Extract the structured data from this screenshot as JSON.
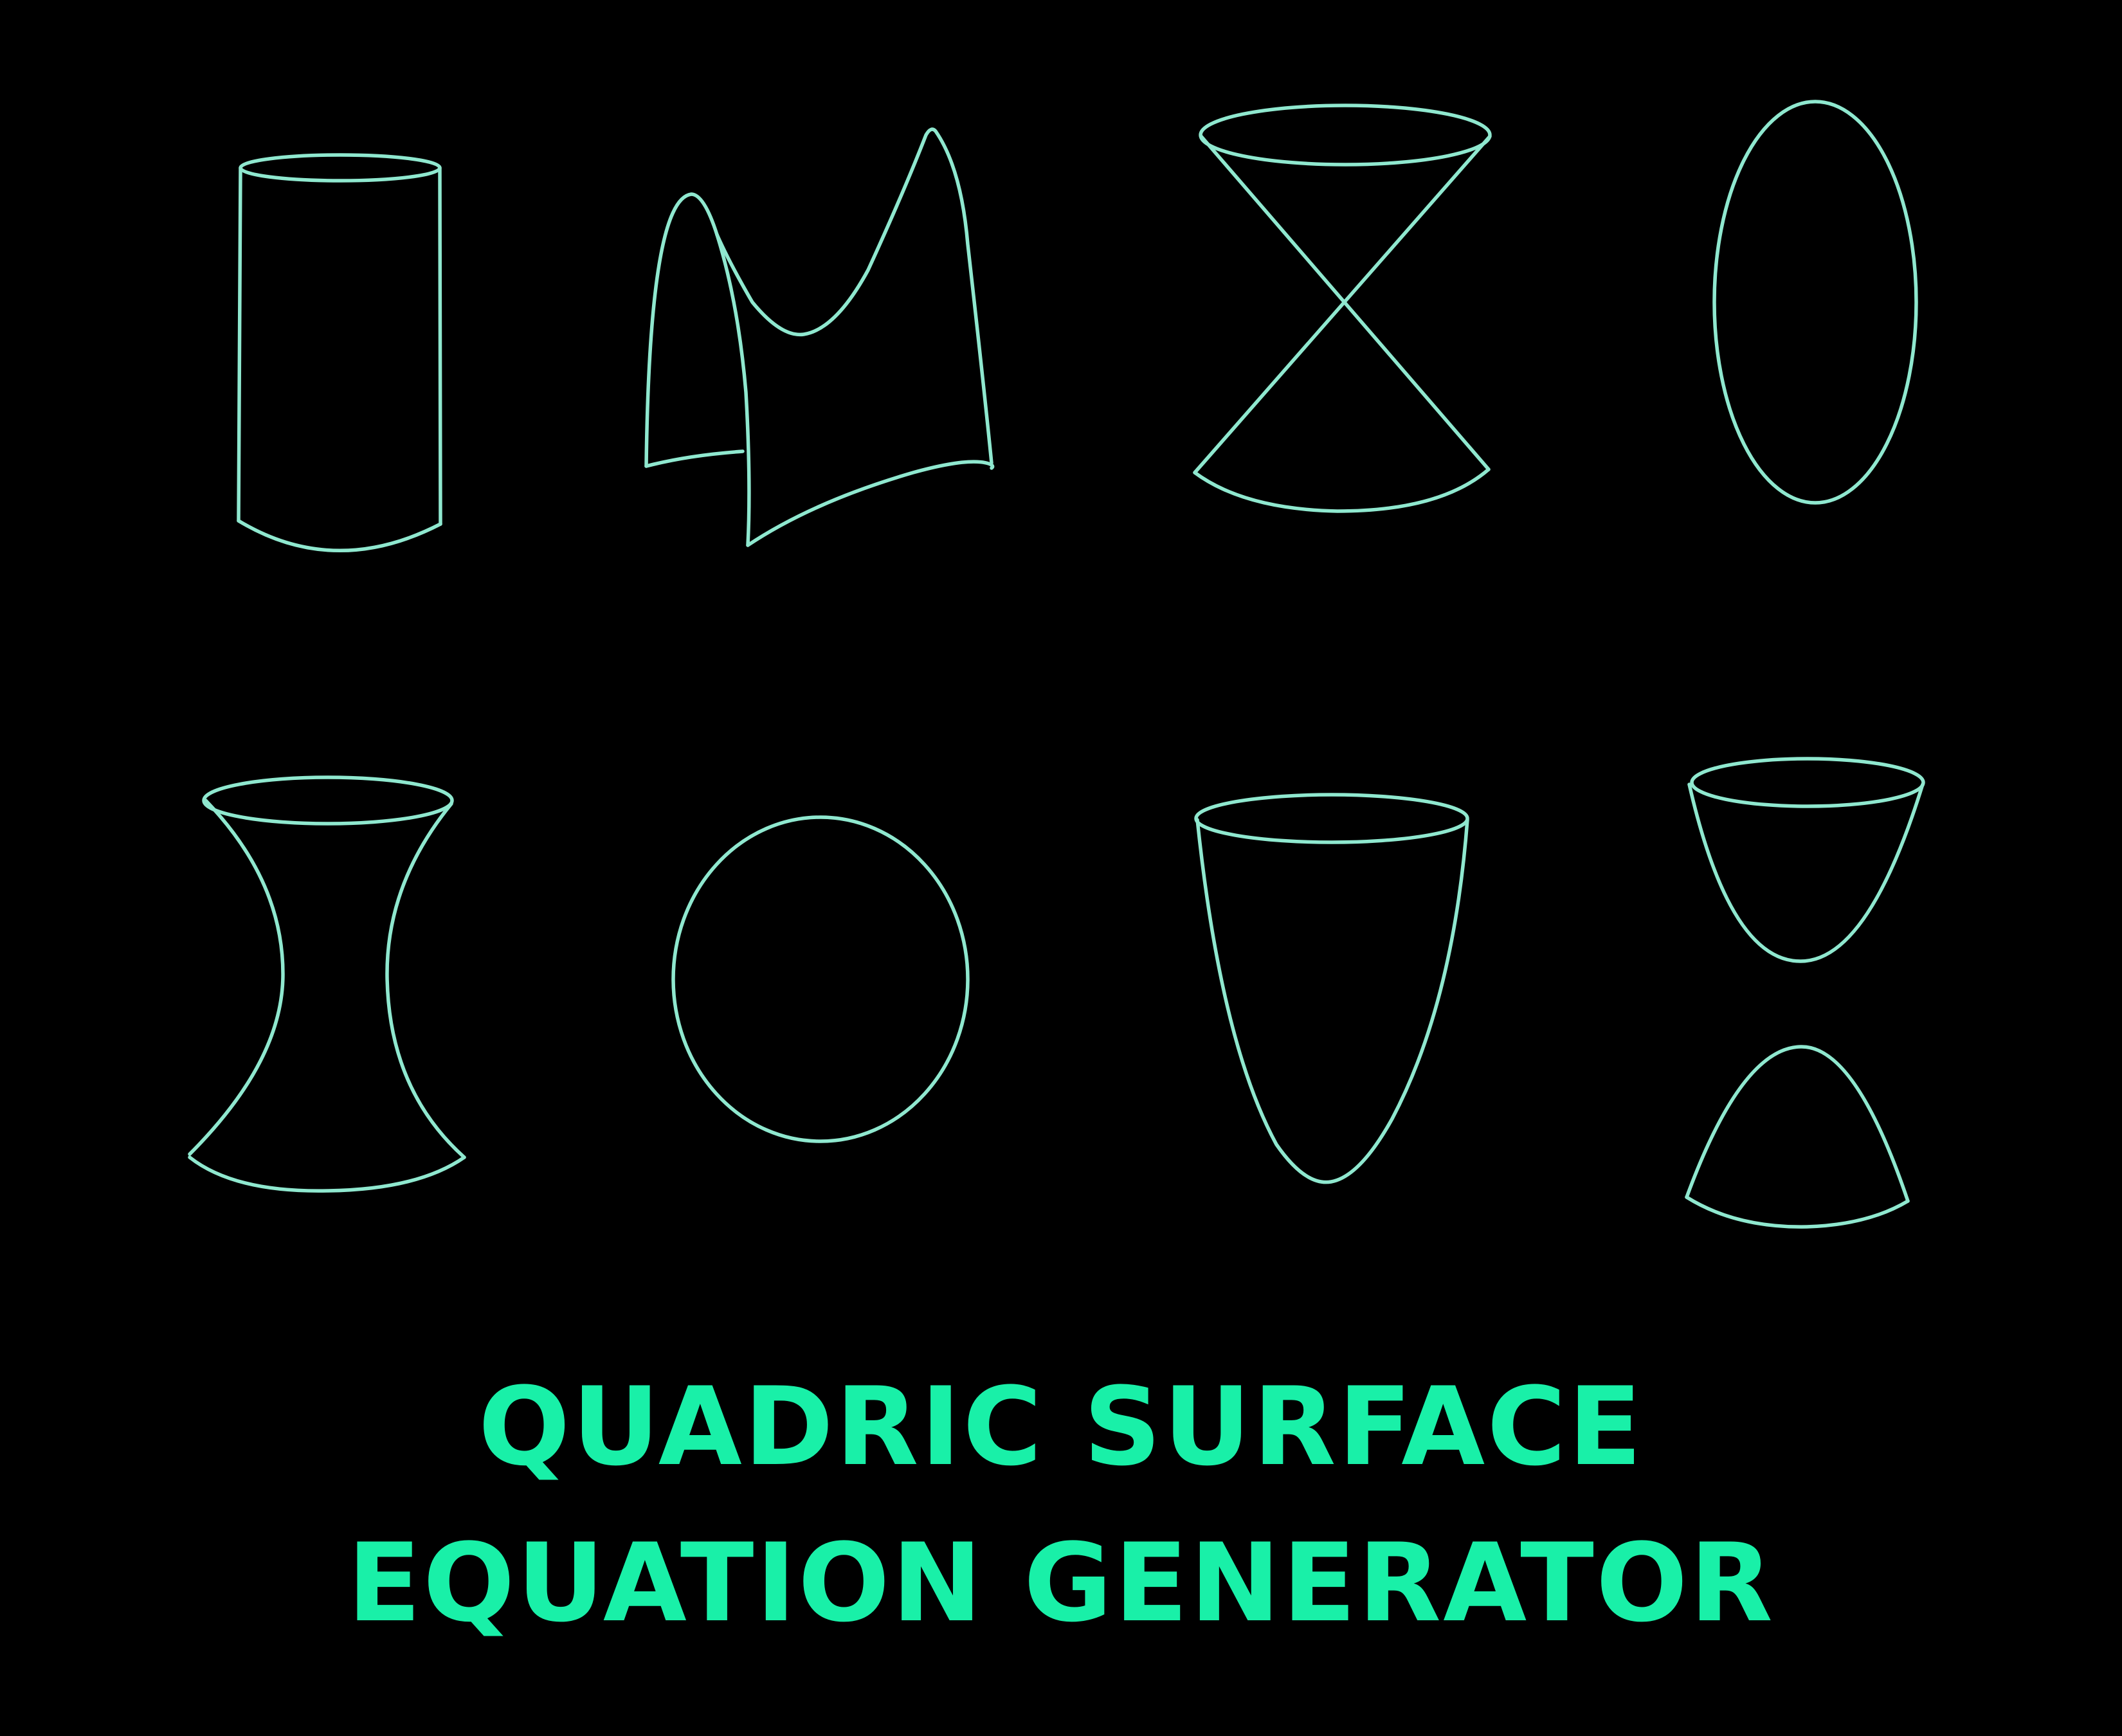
{
  "page": {
    "background_color": "#000000",
    "stroke_color": "#8fe8cf",
    "title_color": "#19f0a8"
  },
  "title": {
    "line1": "QUADRIC SURFACE",
    "line2": "EQUATION GENERATOR"
  },
  "surfaces": [
    {
      "icon": "cylinder-icon"
    },
    {
      "icon": "hyperbolic-paraboloid-icon"
    },
    {
      "icon": "double-cone-icon"
    },
    {
      "icon": "ellipsoid-icon"
    },
    {
      "icon": "hyperboloid-one-sheet-icon"
    },
    {
      "icon": "sphere-icon"
    },
    {
      "icon": "elliptic-paraboloid-icon"
    },
    {
      "icon": "hyperboloid-two-sheets-icon"
    }
  ]
}
